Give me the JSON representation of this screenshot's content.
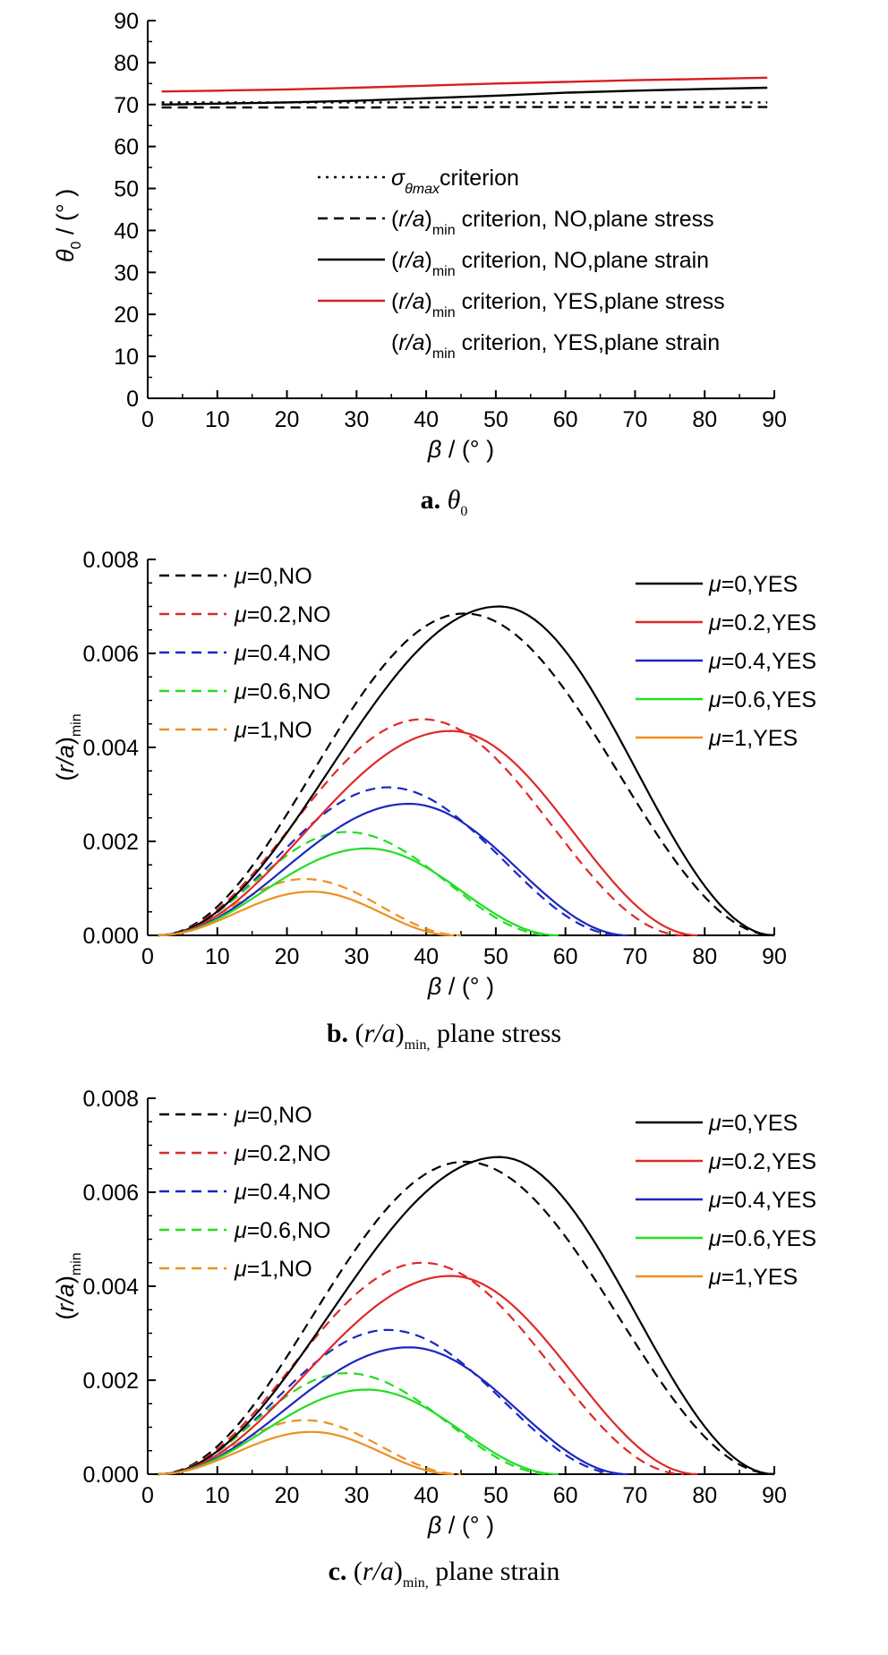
{
  "chart_data": [
    {
      "type": "line",
      "panel": "a",
      "caption": {
        "letter": "a.",
        "text_sym": "θ",
        "text_sub": "0"
      },
      "xlabel": {
        "sym": "β",
        "rest": " / (° )"
      },
      "ylabel": {
        "sym": "θ",
        "sub": "0",
        "rest": " / (° )"
      },
      "xlim": [
        0,
        90
      ],
      "ylim": [
        0,
        90
      ],
      "xticks": [
        "0",
        "10",
        "20",
        "30",
        "40",
        "50",
        "60",
        "70",
        "80",
        "90"
      ],
      "yticks": [
        "0",
        "10",
        "20",
        "30",
        "40",
        "50",
        "60",
        "70",
        "80",
        "90"
      ],
      "legend": [
        {
          "style": "dotted",
          "color": "#000000",
          "parts": [
            {
              "t": "σ",
              "i": true
            },
            {
              "t": "θmax",
              "i": true,
              "sub": true
            },
            {
              "t": "criterion"
            }
          ]
        },
        {
          "style": "dashed",
          "color": "#000000",
          "parts": [
            {
              "t": "("
            },
            {
              "t": "r/a",
              "i": true
            },
            {
              "t": ")"
            },
            {
              "t": "min",
              "sub": true
            },
            {
              "t": " criterion, NO,plane stress"
            }
          ]
        },
        {
          "style": "solid",
          "color": "#000000",
          "parts": [
            {
              "t": "("
            },
            {
              "t": "r/a",
              "i": true
            },
            {
              "t": ")"
            },
            {
              "t": "min",
              "sub": true
            },
            {
              "t": " criterion, NO,plane strain"
            }
          ]
        },
        {
          "style": "solid",
          "color": "#d62020",
          "parts": [
            {
              "t": "("
            },
            {
              "t": "r/a",
              "i": true
            },
            {
              "t": ")"
            },
            {
              "t": "min",
              "sub": true
            },
            {
              "t": " criterion, YES,plane stress"
            }
          ]
        },
        {
          "style": "none",
          "color": "#000000",
          "parts": [
            {
              "t": "("
            },
            {
              "t": "r/a",
              "i": true
            },
            {
              "t": ")"
            },
            {
              "t": "min",
              "sub": true
            },
            {
              "t": " criterion, YES,plane strain"
            }
          ]
        }
      ],
      "series": [
        {
          "style": "dotted",
          "color": "#000000",
          "x": [
            2,
            89
          ],
          "y": [
            70.5,
            70.5
          ]
        },
        {
          "style": "dashed",
          "color": "#000000",
          "x": [
            2,
            10,
            30,
            50,
            70,
            89
          ],
          "y": [
            69.3,
            69.3,
            69.3,
            69.4,
            69.4,
            69.4
          ]
        },
        {
          "style": "solid",
          "color": "#000000",
          "x": [
            2,
            10,
            20,
            30,
            40,
            50,
            60,
            70,
            80,
            89
          ],
          "y": [
            70.0,
            70.2,
            70.5,
            70.9,
            71.5,
            72.1,
            72.8,
            73.3,
            73.7,
            74.0
          ]
        },
        {
          "style": "solid",
          "color": "#d62020",
          "x": [
            2,
            10,
            20,
            30,
            40,
            50,
            60,
            70,
            80,
            89
          ],
          "y": [
            73.1,
            73.3,
            73.6,
            74.0,
            74.5,
            75.0,
            75.4,
            75.8,
            76.1,
            76.4
          ]
        }
      ]
    },
    {
      "type": "line",
      "panel": "b",
      "caption": {
        "letter": "b.",
        "pre": "(",
        "it": "r/a",
        "post": ")",
        "sub": "min,",
        "tail": " plane stress"
      },
      "xlabel": {
        "sym": "β",
        "rest": " / (° )"
      },
      "ylabel": {
        "pre": "(",
        "it": "r/a",
        "post": ")",
        "sub": "min"
      },
      "xlim": [
        0,
        90
      ],
      "ylim": [
        0,
        0.008
      ],
      "xticks": [
        "0",
        "10",
        "20",
        "30",
        "40",
        "50",
        "60",
        "70",
        "80",
        "90"
      ],
      "yticks": [
        "0.000",
        "0.002",
        "0.004",
        "0.006",
        "0.008"
      ],
      "legend_left": [
        {
          "style": "dashed",
          "color": "#000000",
          "label": "=0,NO"
        },
        {
          "style": "dashed",
          "color": "#e02828",
          "label": "=0.2,NO"
        },
        {
          "style": "dashed",
          "color": "#1b27c2",
          "label": "=0.4,NO"
        },
        {
          "style": "dashed",
          "color": "#22dd22",
          "label": "=0.6,NO"
        },
        {
          "style": "dashed",
          "color": "#ee9020",
          "label": "=1,NO"
        }
      ],
      "legend_right": [
        {
          "style": "solid",
          "color": "#000000",
          "label": "=0,YES"
        },
        {
          "style": "solid",
          "color": "#e02828",
          "label": "=0.2,YES"
        },
        {
          "style": "solid",
          "color": "#1b27c2",
          "label": "=0.4,YES"
        },
        {
          "style": "solid",
          "color": "#22dd22",
          "label": "=0.6,YES"
        },
        {
          "style": "solid",
          "color": "#ee9020",
          "label": "=1,YES"
        }
      ],
      "legend_symbol": "μ",
      "series": [
        {
          "name": "μ=0,NO",
          "style": "dashed",
          "color": "#000000",
          "peak_x": 45.5,
          "peak_y": 0.00685,
          "end_x": 90
        },
        {
          "name": "μ=0.2,NO",
          "style": "dashed",
          "color": "#e02828",
          "peak_x": 39.5,
          "peak_y": 0.0046,
          "end_x": 77
        },
        {
          "name": "μ=0.4,NO",
          "style": "dashed",
          "color": "#1b27c2",
          "peak_x": 34.5,
          "peak_y": 0.00315,
          "end_x": 68
        },
        {
          "name": "μ=0.6,NO",
          "style": "dashed",
          "color": "#22dd22",
          "peak_x": 28.5,
          "peak_y": 0.0022,
          "end_x": 58
        },
        {
          "name": "μ=1,NO",
          "style": "dashed",
          "color": "#ee9020",
          "peak_x": 22.5,
          "peak_y": 0.0012,
          "end_x": 45
        },
        {
          "name": "μ=0,YES",
          "style": "solid",
          "color": "#000000",
          "peak_x": 50.5,
          "peak_y": 0.007,
          "end_x": 90
        },
        {
          "name": "μ=0.2,YES",
          "style": "solid",
          "color": "#e02828",
          "peak_x": 43.5,
          "peak_y": 0.00435,
          "end_x": 79
        },
        {
          "name": "μ=0.4,YES",
          "style": "solid",
          "color": "#1b27c2",
          "peak_x": 37.5,
          "peak_y": 0.0028,
          "end_x": 69
        },
        {
          "name": "μ=0.6,YES",
          "style": "solid",
          "color": "#22dd22",
          "peak_x": 31.5,
          "peak_y": 0.00185,
          "end_x": 59
        },
        {
          "name": "μ=1,YES",
          "style": "solid",
          "color": "#ee9020",
          "peak_x": 23.5,
          "peak_y": 0.00093,
          "end_x": 44
        }
      ]
    },
    {
      "type": "line",
      "panel": "c",
      "caption": {
        "letter": "c.",
        "pre": "(",
        "it": "r/a",
        "post": ")",
        "sub": "min,",
        "tail": " plane strain"
      },
      "xlabel": {
        "sym": "β",
        "rest": " / (° )"
      },
      "ylabel": {
        "pre": "(",
        "it": "r/a",
        "post": ")",
        "sub": "min"
      },
      "xlim": [
        0,
        90
      ],
      "ylim": [
        0,
        0.008
      ],
      "xticks": [
        "0",
        "10",
        "20",
        "30",
        "40",
        "50",
        "60",
        "70",
        "80",
        "90"
      ],
      "yticks": [
        "0.000",
        "0.002",
        "0.004",
        "0.006",
        "0.008"
      ],
      "legend_left": [
        {
          "style": "dashed",
          "color": "#000000",
          "label": "=0,NO"
        },
        {
          "style": "dashed",
          "color": "#e02828",
          "label": "=0.2,NO"
        },
        {
          "style": "dashed",
          "color": "#1b27c2",
          "label": "=0.4,NO"
        },
        {
          "style": "dashed",
          "color": "#22dd22",
          "label": "=0.6,NO"
        },
        {
          "style": "dashed",
          "color": "#ee9020",
          "label": "=1,NO"
        }
      ],
      "legend_right": [
        {
          "style": "solid",
          "color": "#000000",
          "label": "=0,YES"
        },
        {
          "style": "solid",
          "color": "#e02828",
          "label": "=0.2,YES"
        },
        {
          "style": "solid",
          "color": "#1b27c2",
          "label": "=0.4,YES"
        },
        {
          "style": "solid",
          "color": "#22dd22",
          "label": "=0.6,YES"
        },
        {
          "style": "solid",
          "color": "#ee9020",
          "label": "=1,YES"
        }
      ],
      "legend_symbol": "μ",
      "series": [
        {
          "name": "μ=0,NO",
          "style": "dashed",
          "color": "#000000",
          "peak_x": 45.5,
          "peak_y": 0.00665,
          "end_x": 90
        },
        {
          "name": "μ=0.2,NO",
          "style": "dashed",
          "color": "#e02828",
          "peak_x": 39.5,
          "peak_y": 0.0045,
          "end_x": 77
        },
        {
          "name": "μ=0.4,NO",
          "style": "dashed",
          "color": "#1b27c2",
          "peak_x": 34.5,
          "peak_y": 0.00307,
          "end_x": 68
        },
        {
          "name": "μ=0.6,NO",
          "style": "dashed",
          "color": "#22dd22",
          "peak_x": 28.5,
          "peak_y": 0.00215,
          "end_x": 58
        },
        {
          "name": "μ=1,NO",
          "style": "dashed",
          "color": "#ee9020",
          "peak_x": 22.5,
          "peak_y": 0.00115,
          "end_x": 45
        },
        {
          "name": "μ=0,YES",
          "style": "solid",
          "color": "#000000",
          "peak_x": 50.5,
          "peak_y": 0.00675,
          "end_x": 90
        },
        {
          "name": "μ=0.2,YES",
          "style": "solid",
          "color": "#e02828",
          "peak_x": 43.5,
          "peak_y": 0.00422,
          "end_x": 79
        },
        {
          "name": "μ=0.4,YES",
          "style": "solid",
          "color": "#1b27c2",
          "peak_x": 37.5,
          "peak_y": 0.0027,
          "end_x": 69
        },
        {
          "name": "μ=0.6,YES",
          "style": "solid",
          "color": "#22dd22",
          "peak_x": 31.5,
          "peak_y": 0.0018,
          "end_x": 59
        },
        {
          "name": "μ=1,YES",
          "style": "solid",
          "color": "#ee9020",
          "peak_x": 23.5,
          "peak_y": 0.0009,
          "end_x": 44
        }
      ]
    }
  ]
}
